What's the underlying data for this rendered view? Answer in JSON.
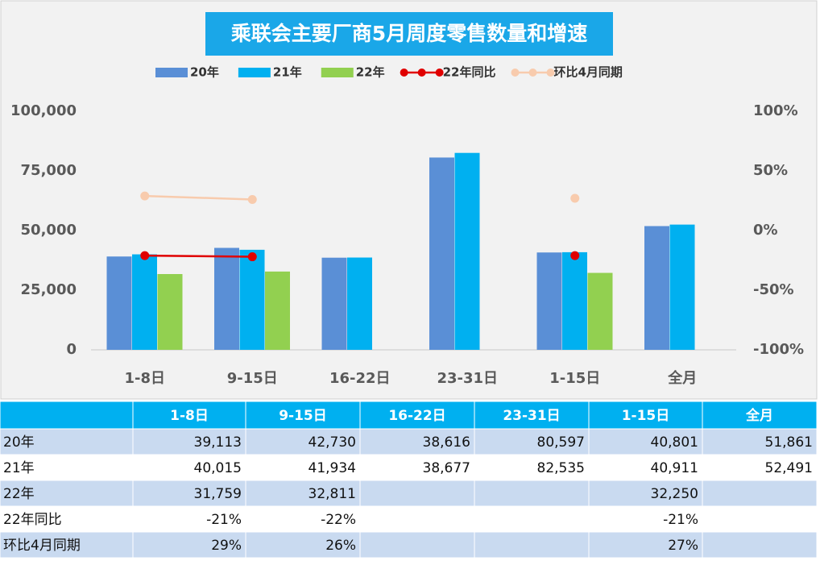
{
  "chart_data": {
    "type": "bar",
    "title": "乘联会主要厂商5月周度零售数量和增速",
    "categories": [
      "1-8日",
      "9-15日",
      "16-22日",
      "23-31日",
      "1-15日",
      "全月"
    ],
    "series": [
      {
        "name": "20年",
        "type": "bar",
        "color": "#5a8fd6",
        "values": [
          39113,
          42730,
          38616,
          80597,
          40801,
          51861
        ],
        "value_labels": [
          "39,113",
          "42,730",
          "38,616",
          "80,597",
          "40,801",
          "51,861"
        ]
      },
      {
        "name": "21年",
        "type": "bar",
        "color": "#00b0f0",
        "values": [
          40015,
          41934,
          38677,
          82535,
          40911,
          52491
        ],
        "value_labels": [
          "40,015",
          "41,934",
          "38,677",
          "82,535",
          "40,911",
          "52,491"
        ]
      },
      {
        "name": "22年",
        "type": "bar",
        "color": "#92d050",
        "values": [
          31759,
          32811,
          null,
          null,
          32250,
          null
        ],
        "value_labels": [
          "31,759",
          "32,811",
          null,
          null,
          "32,250",
          null
        ]
      },
      {
        "name": "22年同比",
        "type": "line",
        "axis": "y2",
        "color": "#e00000",
        "values": [
          -21,
          -22,
          null,
          null,
          -21,
          null
        ],
        "value_labels": [
          "-21%",
          "-22%",
          null,
          null,
          "-21%",
          null
        ]
      },
      {
        "name": "环比4月同期",
        "type": "line",
        "axis": "y2",
        "color": "#f8cbad",
        "values": [
          29,
          26,
          null,
          null,
          27,
          null
        ],
        "value_labels": [
          "29%",
          "26%",
          null,
          null,
          "27%",
          null
        ]
      }
    ],
    "ylim": [
      0,
      100000
    ],
    "yticks": [
      0,
      {
        "value": 25000,
        "label": "25,000"
      },
      {
        "value": 50000,
        "label": "50,000"
      },
      {
        "value": 75000,
        "label": "75,000"
      },
      {
        "value": 100000,
        "label": "100,000"
      }
    ],
    "y2lim": [
      -100,
      100
    ],
    "y2ticks": [
      {
        "value": -100,
        "label": "-100%"
      },
      {
        "value": -50,
        "label": "-50%"
      },
      {
        "value": 0,
        "label": "0%"
      },
      {
        "value": 50,
        "label": "50%"
      },
      {
        "value": 100,
        "label": "100%"
      }
    ],
    "legend": "top"
  }
}
